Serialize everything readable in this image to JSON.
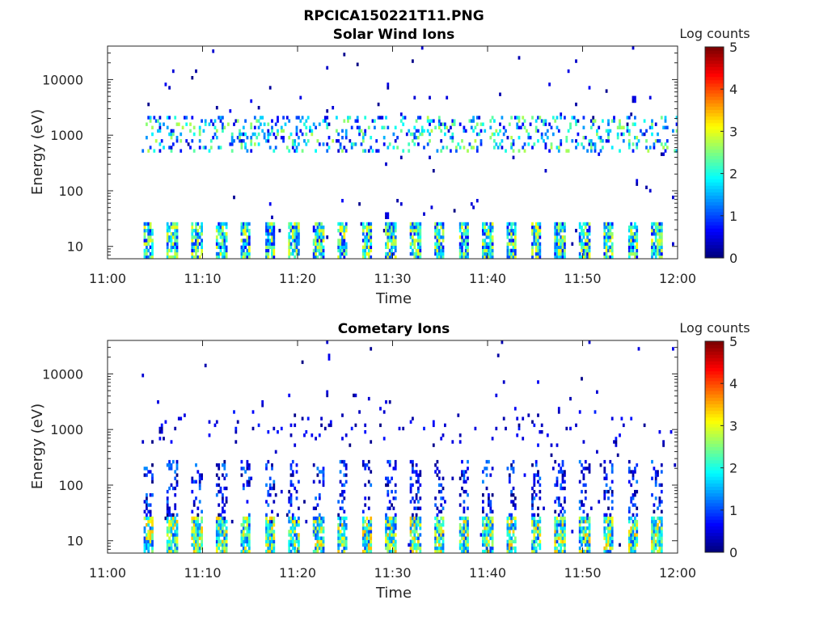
{
  "figure": {
    "filename_title": "RPCICA150221T11.PNG"
  },
  "chart_data": [
    {
      "type": "heatmap",
      "title": "Solar Wind Ions",
      "xlabel": "Time",
      "ylabel": "Energy (eV)",
      "x_range": [
        "11:00",
        "12:00"
      ],
      "x_ticks": [
        "11:00",
        "11:10",
        "11:20",
        "11:30",
        "11:40",
        "11:50",
        "12:00"
      ],
      "y_scale": "log",
      "y_range": [
        6,
        40000
      ],
      "y_ticks": [
        10,
        100,
        1000,
        10000
      ],
      "y_tick_labels": [
        "10",
        "100",
        "1000",
        "10000"
      ],
      "colorbar": {
        "label": "Log counts",
        "range": [
          0,
          5
        ],
        "ticks": [
          "0",
          "1",
          "2",
          "3",
          "4",
          "5"
        ],
        "colormap": "jet"
      },
      "grid": false,
      "features": [
        {
          "band": "low-energy",
          "energy_range": [
            6,
            28
          ],
          "intensity": "1-3",
          "pattern": "periodic bursts ~every 2.5 min"
        },
        {
          "band": "solar-wind",
          "energy_range": [
            500,
            2200
          ],
          "intensity": "1-3",
          "pattern": "intermittent patches"
        },
        {
          "band": "sparse",
          "energy_range": [
            50,
            40000
          ],
          "intensity": "0-1",
          "pattern": "scattered single counts"
        }
      ]
    },
    {
      "type": "heatmap",
      "title": "Cometary Ions",
      "xlabel": "Time",
      "ylabel": "Energy (eV)",
      "x_range": [
        "11:00",
        "12:00"
      ],
      "x_ticks": [
        "11:00",
        "11:10",
        "11:20",
        "11:30",
        "11:40",
        "11:50",
        "12:00"
      ],
      "y_scale": "log",
      "y_range": [
        6,
        40000
      ],
      "y_ticks": [
        10,
        100,
        1000,
        10000
      ],
      "y_tick_labels": [
        "10",
        "100",
        "1000",
        "10000"
      ],
      "colorbar": {
        "label": "Log counts",
        "range": [
          0,
          5
        ],
        "ticks": [
          "0",
          "1",
          "2",
          "3",
          "4",
          "5"
        ],
        "colormap": "jet"
      },
      "grid": false,
      "features": [
        {
          "band": "low-energy",
          "energy_range": [
            6,
            30
          ],
          "intensity": "1-3.5",
          "pattern": "periodic bursts ~every 2.5 min"
        },
        {
          "band": "mid",
          "energy_range": [
            30,
            300
          ],
          "intensity": "0-1",
          "pattern": "dispersed tails above bursts"
        },
        {
          "band": "high",
          "energy_range": [
            500,
            2200
          ],
          "intensity": "0-1",
          "pattern": "sparse counts"
        }
      ]
    }
  ]
}
